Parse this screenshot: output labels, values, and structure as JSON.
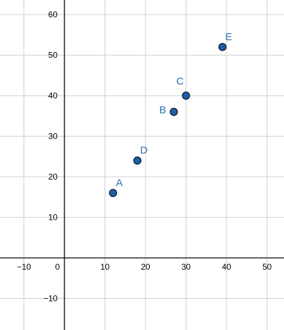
{
  "chart_data": {
    "type": "scatter",
    "title": "",
    "xlabel": "",
    "ylabel": "",
    "xlim": [
      -16,
      54
    ],
    "ylim": [
      -17.5,
      64
    ],
    "grid": true,
    "x_ticks": [
      -10,
      0,
      10,
      20,
      30,
      40,
      50
    ],
    "y_ticks": [
      -10,
      10,
      20,
      30,
      40,
      50,
      60
    ],
    "x_tick_labels": [
      "−10",
      "0",
      "10",
      "20",
      "30",
      "40",
      "50"
    ],
    "y_tick_labels": [
      "−10",
      "10",
      "20",
      "30",
      "40",
      "50",
      "60"
    ],
    "point_color": "#1f5fa8",
    "label_color": "#2f6fb3",
    "points": [
      {
        "label": "A",
        "x": 12,
        "y": 16
      },
      {
        "label": "D",
        "x": 18,
        "y": 24
      },
      {
        "label": "B",
        "x": 27,
        "y": 36
      },
      {
        "label": "C",
        "x": 30,
        "y": 40
      },
      {
        "label": "E",
        "x": 39,
        "y": 52
      }
    ]
  }
}
